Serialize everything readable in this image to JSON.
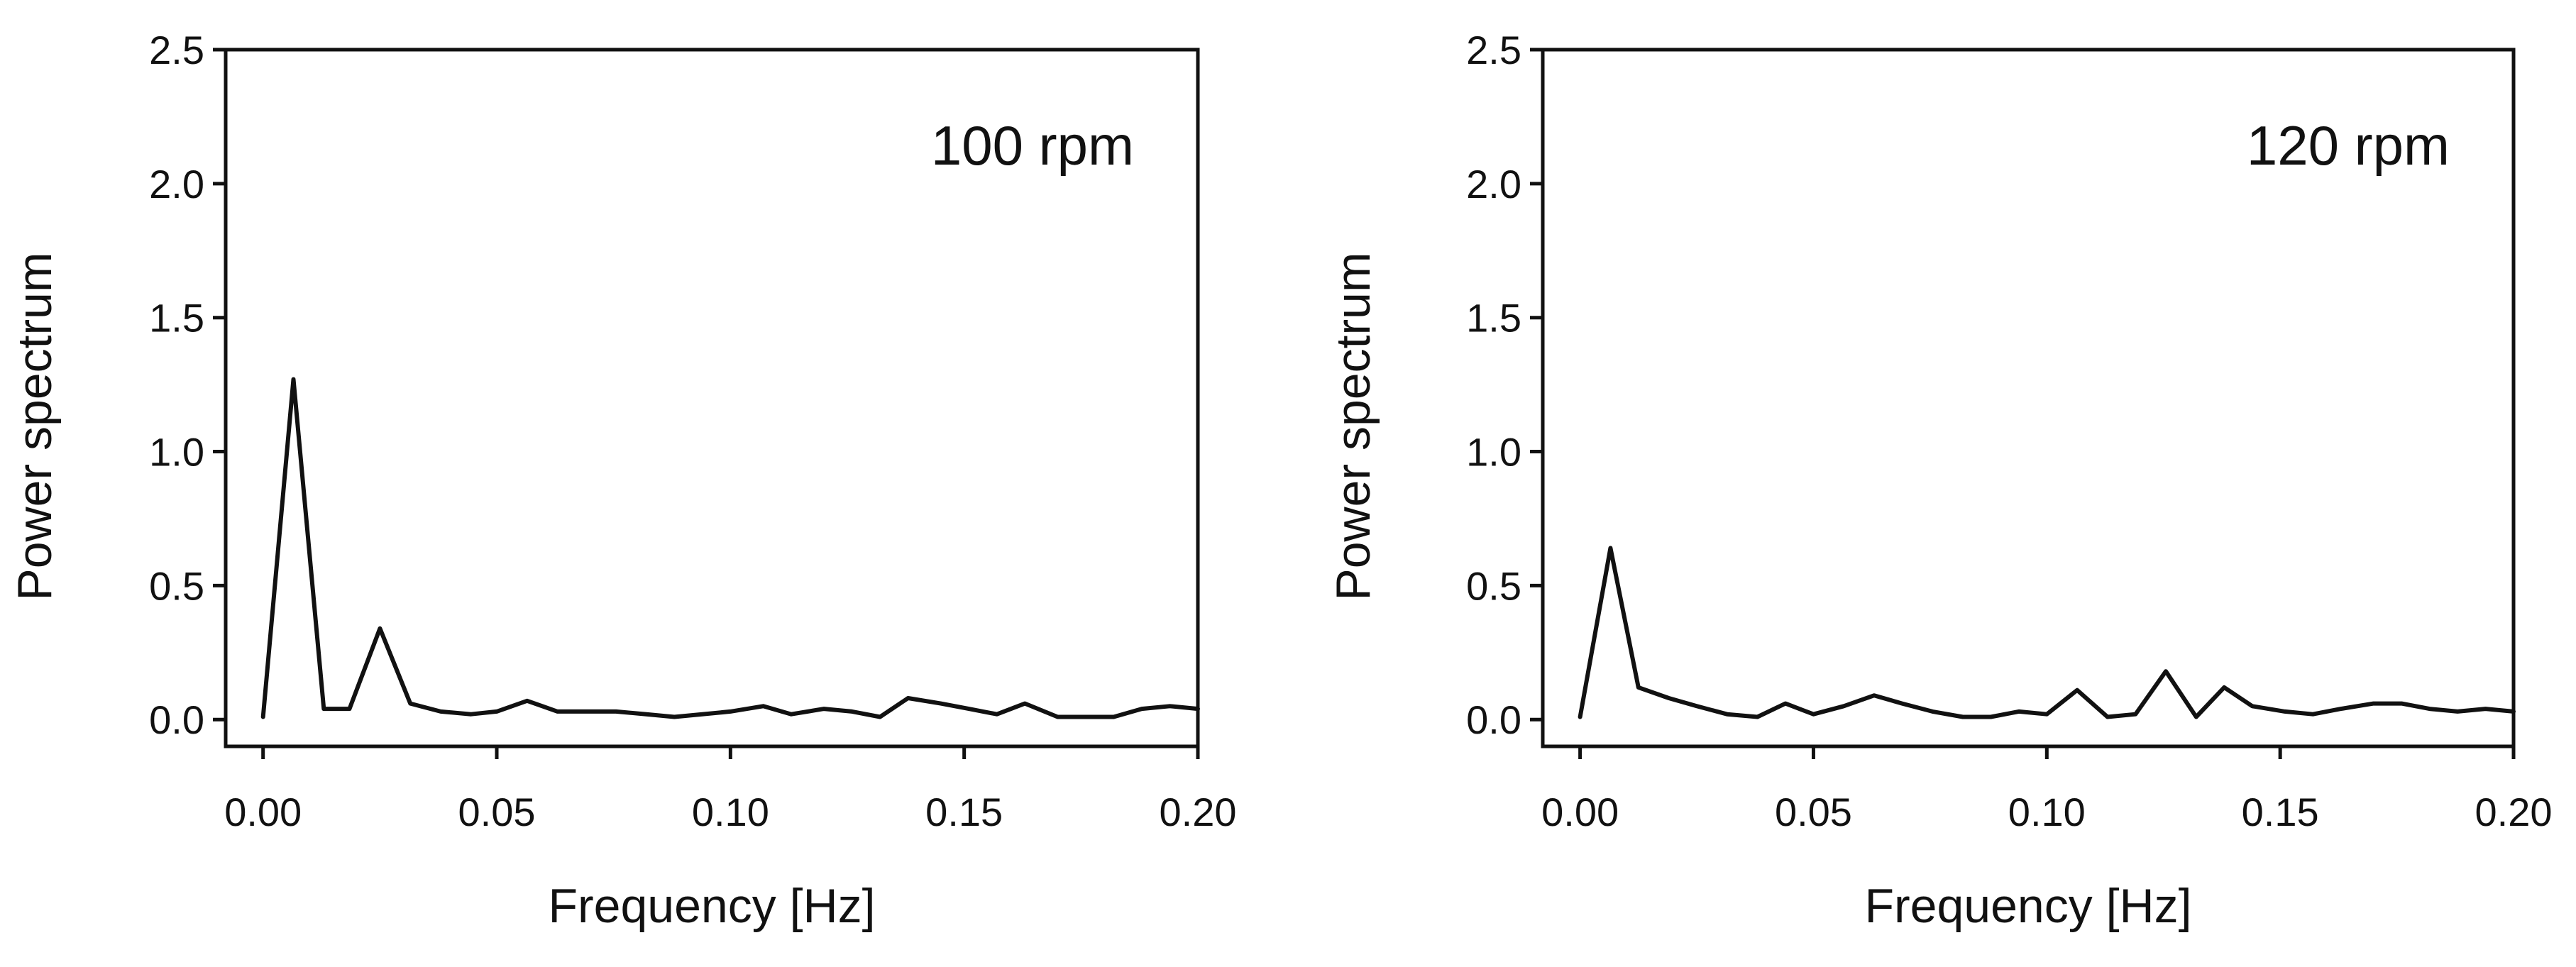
{
  "chart_data": [
    {
      "type": "line",
      "annotation": "100 rpm",
      "xlabel": "Frequency [Hz]",
      "ylabel": "Power spectrum",
      "xlim": [
        -0.008,
        0.2
      ],
      "ylim": [
        -0.1,
        2.5
      ],
      "xticks": [
        0.0,
        0.05,
        0.1,
        0.15,
        0.2
      ],
      "xtick_labels": [
        "0.00",
        "0.05",
        "0.10",
        "0.15",
        "0.20"
      ],
      "yticks": [
        0.0,
        0.5,
        1.0,
        1.5,
        2.0,
        2.5
      ],
      "ytick_labels": [
        "0.0",
        "0.5",
        "1.0",
        "1.5",
        "2.0",
        "2.5"
      ],
      "grid": false,
      "legend": false,
      "color": "#111111",
      "x": [
        0.0,
        0.0065,
        0.013,
        0.0185,
        0.025,
        0.0315,
        0.038,
        0.0445,
        0.05,
        0.0565,
        0.063,
        0.0755,
        0.082,
        0.088,
        0.1,
        0.107,
        0.113,
        0.12,
        0.126,
        0.132,
        0.138,
        0.145,
        0.151,
        0.157,
        0.163,
        0.17,
        0.176,
        0.182,
        0.188,
        0.194,
        0.2
      ],
      "y": [
        0.01,
        1.27,
        0.04,
        0.04,
        0.34,
        0.06,
        0.03,
        0.02,
        0.03,
        0.07,
        0.03,
        0.03,
        0.02,
        0.01,
        0.03,
        0.05,
        0.02,
        0.04,
        0.03,
        0.01,
        0.08,
        0.06,
        0.04,
        0.02,
        0.06,
        0.01,
        0.01,
        0.01,
        0.04,
        0.05,
        0.04
      ]
    },
    {
      "type": "line",
      "annotation": "120 rpm",
      "xlabel": "Frequency [Hz]",
      "ylabel": "Power spectrum",
      "xlim": [
        -0.008,
        0.2
      ],
      "ylim": [
        -0.1,
        2.5
      ],
      "xticks": [
        0.0,
        0.05,
        0.1,
        0.15,
        0.2
      ],
      "xtick_labels": [
        "0.00",
        "0.05",
        "0.10",
        "0.15",
        "0.20"
      ],
      "yticks": [
        0.0,
        0.5,
        1.0,
        1.5,
        2.0,
        2.5
      ],
      "ytick_labels": [
        "0.0",
        "0.5",
        "1.0",
        "1.5",
        "2.0",
        "2.5"
      ],
      "grid": false,
      "legend": false,
      "color": "#111111",
      "x": [
        0.0,
        0.0065,
        0.0125,
        0.019,
        0.025,
        0.0315,
        0.038,
        0.044,
        0.05,
        0.0565,
        0.063,
        0.069,
        0.0755,
        0.082,
        0.088,
        0.094,
        0.1,
        0.1065,
        0.113,
        0.119,
        0.1255,
        0.132,
        0.138,
        0.144,
        0.151,
        0.157,
        0.163,
        0.17,
        0.176,
        0.182,
        0.188,
        0.194,
        0.2
      ],
      "y": [
        0.01,
        0.64,
        0.12,
        0.08,
        0.05,
        0.02,
        0.01,
        0.06,
        0.02,
        0.05,
        0.09,
        0.06,
        0.03,
        0.01,
        0.01,
        0.03,
        0.02,
        0.11,
        0.01,
        0.02,
        0.18,
        0.01,
        0.12,
        0.05,
        0.03,
        0.02,
        0.04,
        0.06,
        0.06,
        0.04,
        0.03,
        0.04,
        0.03
      ]
    }
  ]
}
